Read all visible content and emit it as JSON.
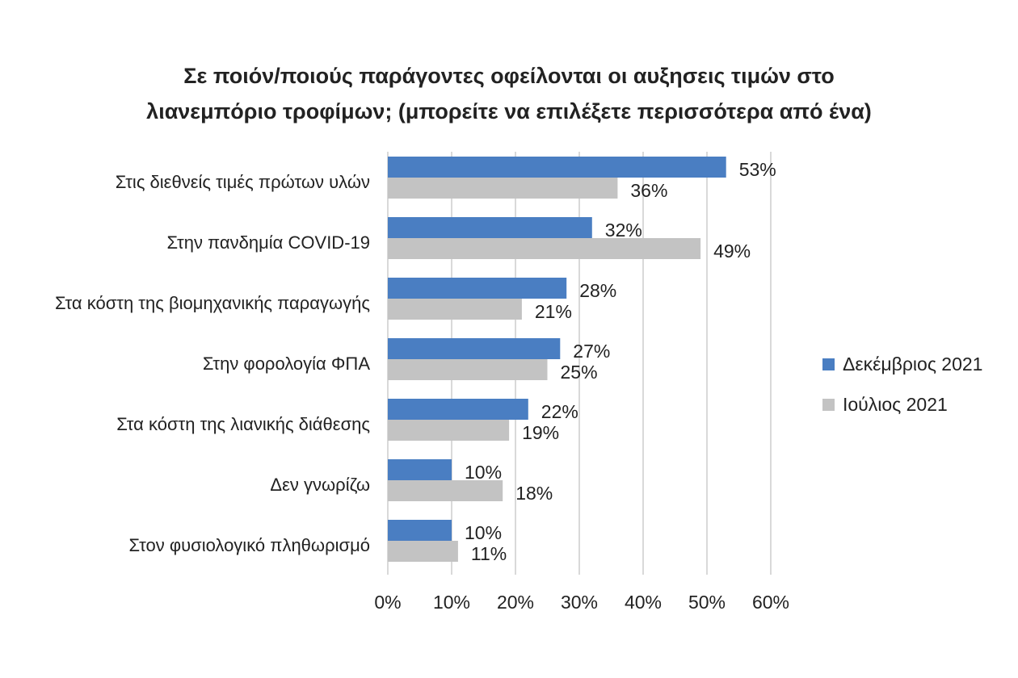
{
  "title": {
    "line1": "Σε ποιόν/ποιούς παράγοντες οφείλονται οι αυξησεις τιμών στο",
    "line2": "λιανεμπόριο τροφίμων; (μπορείτε να επιλέξετε περισσότερα από ένα)"
  },
  "colors": {
    "dec": "#4a7ec2",
    "jul": "#c3c3c3",
    "grid": "#d9d9d9"
  },
  "chart_data": {
    "type": "bar",
    "orientation": "horizontal",
    "title": "Σε ποιόν/ποιούς παράγοντες οφείλονται οι αυξησεις τιμών στο λιανεμπόριο τροφίμων; (μπορείτε να επιλέξετε περισσότερα από ένα)",
    "categories": [
      "Στις διεθνείς τιμές πρώτων υλών",
      "Στην πανδημία COVID-19",
      "Στα κόστη της βιομηχανικής παραγωγής",
      "Στην φορολογία ΦΠΑ",
      "Στα κόστη της λιανικής διάθεσης",
      "Δεν γνωρίζω",
      "Στον φυσιολογικό πληθωρισμό"
    ],
    "series": [
      {
        "name": "Δεκέμβριος 2021",
        "values": [
          53,
          32,
          28,
          27,
          22,
          10,
          10
        ],
        "labels": [
          "53%",
          "32%",
          "28%",
          "27%",
          "22%",
          "10%",
          "10%"
        ]
      },
      {
        "name": "Ιούλιος 2021",
        "values": [
          36,
          49,
          21,
          25,
          19,
          18,
          11
        ],
        "labels": [
          "36%",
          "49%",
          "21%",
          "25%",
          "19%",
          "18%",
          "11%"
        ]
      }
    ],
    "xlim": [
      0,
      60
    ],
    "xticks": [
      "0%",
      "10%",
      "20%",
      "30%",
      "40%",
      "50%",
      "60%"
    ],
    "grid": true,
    "legend": "right"
  }
}
